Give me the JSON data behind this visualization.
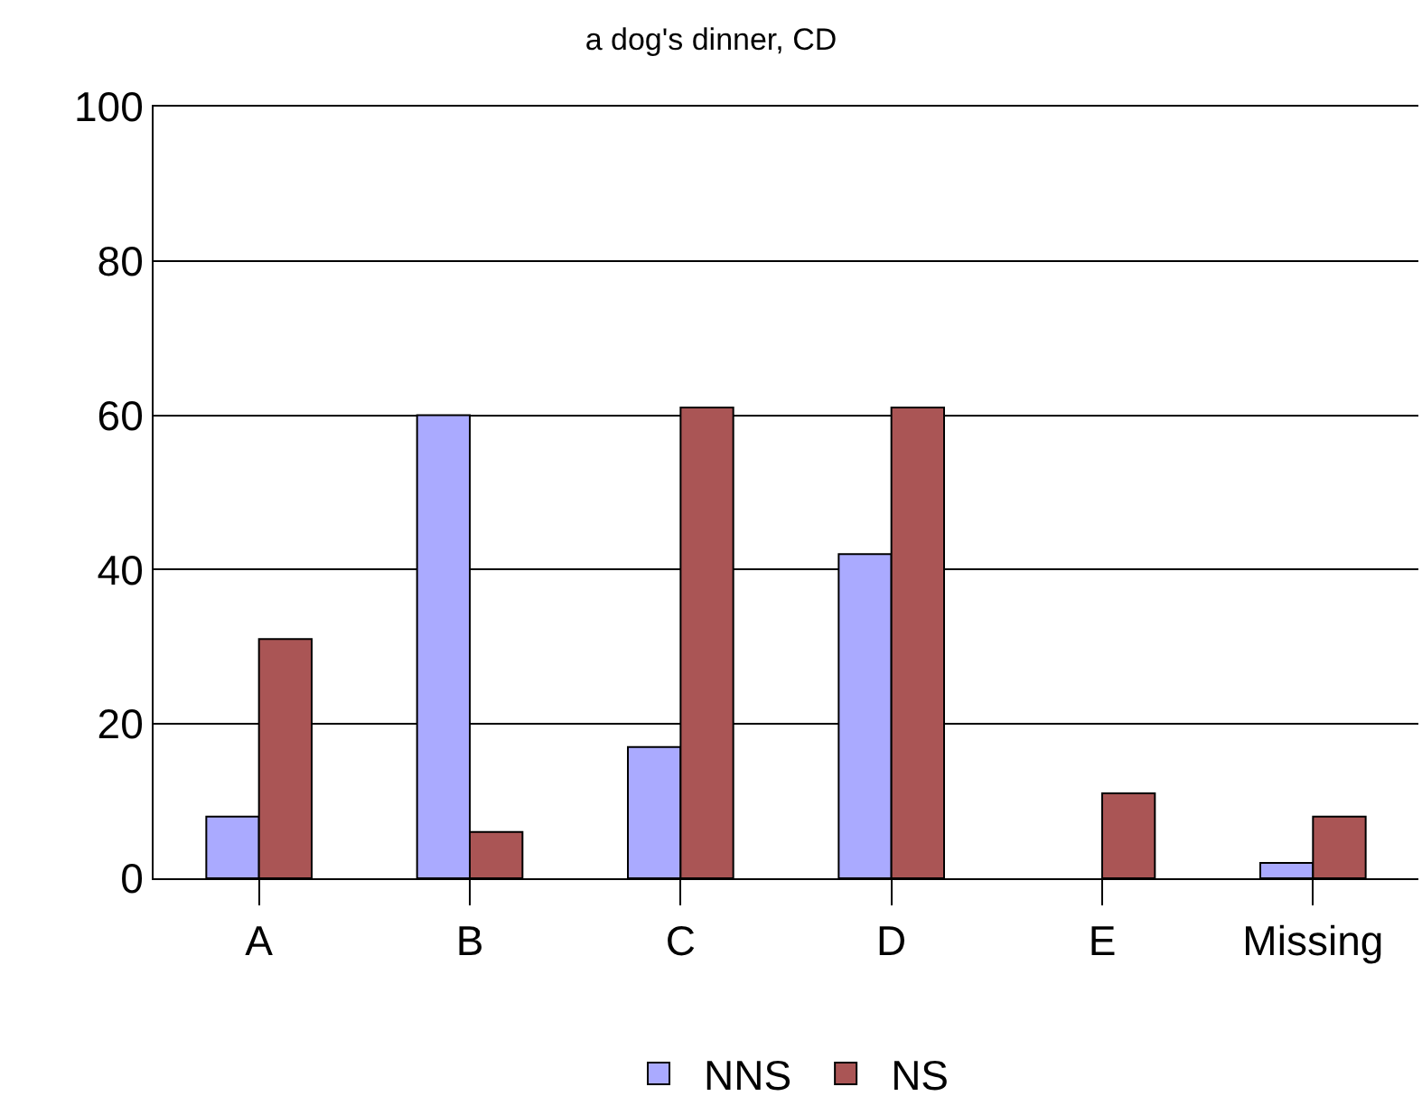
{
  "chart_data": {
    "type": "bar",
    "title": "a dog's dinner, CD",
    "categories": [
      "A",
      "B",
      "C",
      "D",
      "E",
      "Missing"
    ],
    "series": [
      {
        "name": "NNS",
        "color": "#aaaaff",
        "values": [
          8,
          60,
          17,
          42,
          null,
          2
        ]
      },
      {
        "name": "NS",
        "color": "#aa5555",
        "values": [
          31,
          6,
          61,
          61,
          11,
          8
        ]
      }
    ],
    "ylim": [
      0,
      100
    ],
    "yticks": [
      0,
      20,
      40,
      60,
      80,
      100
    ],
    "grid": "y",
    "legend": "bottom"
  }
}
